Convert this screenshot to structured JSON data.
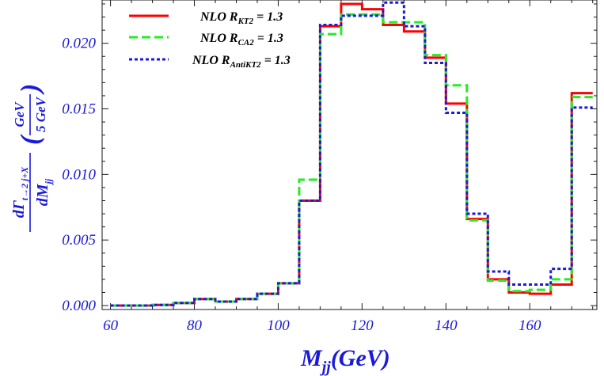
{
  "chart_data": {
    "type": "line",
    "step": true,
    "xlabel": {
      "main": "M",
      "sub": "jj",
      "rest": "(GeV)"
    },
    "ylabel": {
      "num_main": "dΓ",
      "num_sub": "t→2 j+X",
      "den_main": "dM",
      "den_sub": "jj",
      "frac_num": "GeV",
      "frac_den": "5 GeV"
    },
    "xlim": [
      58,
      176
    ],
    "ylim": [
      -0.0003,
      0.0233
    ],
    "xticks": [
      60,
      80,
      100,
      120,
      140,
      160
    ],
    "yticks": [
      0.0,
      0.005,
      0.01,
      0.015,
      0.02
    ],
    "ytick_labels": [
      "0.000",
      "0.005",
      "0.010",
      "0.015",
      "0.020"
    ],
    "bin_edges": [
      60,
      65,
      70,
      75,
      80,
      85,
      90,
      95,
      100,
      105,
      110,
      115,
      120,
      125,
      130,
      135,
      140,
      145,
      150,
      155,
      160,
      165,
      170,
      175
    ],
    "series": [
      {
        "label_main": "NLO R",
        "label_sub": "KT2",
        "label_tail": " = 1.3",
        "color": "#ff0000",
        "dash": "",
        "values": [
          0.0,
          0.0,
          5e-05,
          0.0002,
          0.0005,
          0.0003,
          0.0005,
          0.0009,
          0.0017,
          0.008,
          0.0213,
          0.023,
          0.0226,
          0.0214,
          0.0209,
          0.0189,
          0.0154,
          0.0066,
          0.002,
          0.001,
          0.0009,
          0.0016,
          0.0162
        ]
      },
      {
        "label_main": "NLO R",
        "label_sub": "CA2",
        "label_tail": " = 1.3",
        "color": "#22ee22",
        "dash": "11,5",
        "values": [
          0.0,
          0.0,
          5e-05,
          0.0002,
          0.0005,
          0.0003,
          0.0005,
          0.0009,
          0.0017,
          0.0096,
          0.0207,
          0.0222,
          0.0222,
          0.0216,
          0.0216,
          0.0191,
          0.0168,
          0.0065,
          0.0019,
          0.0011,
          0.0012,
          0.002,
          0.0159
        ]
      },
      {
        "label_main": "NLO R",
        "label_sub": "AntiKT2",
        "label_tail": " = 1.3",
        "color": "#1a1adb",
        "dash": "4,3",
        "values": [
          0.0,
          0.0,
          5e-05,
          0.0002,
          0.0005,
          0.0003,
          0.0005,
          0.0009,
          0.0017,
          0.008,
          0.0214,
          0.0221,
          0.0221,
          0.0231,
          0.0213,
          0.0185,
          0.0147,
          0.007,
          0.0026,
          0.0016,
          0.0016,
          0.0028,
          0.0151
        ]
      }
    ]
  }
}
